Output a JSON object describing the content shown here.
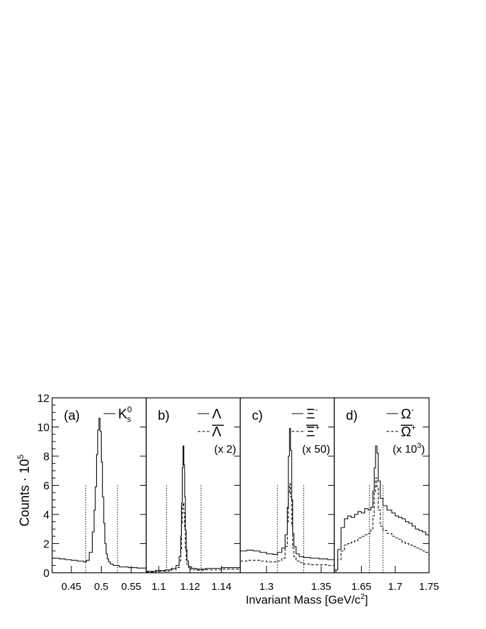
{
  "figure": {
    "ylabel_main": "Counts · 10",
    "ylabel_exp": "5",
    "xlabel_main": "Invariant Mass [GeV/c",
    "xlabel_exp": "2",
    "xlabel_close": "]",
    "yticks": [
      "0",
      "2",
      "4",
      "6",
      "8",
      "10",
      "12"
    ]
  },
  "chart_data": [
    {
      "type": "line",
      "panel_label": "(a)",
      "scale_note": "",
      "xticks": [
        "0.45",
        "0.5",
        "0.55"
      ],
      "xlim": [
        0.418,
        0.575
      ],
      "ylim": [
        0,
        12
      ],
      "cut_lines": [
        0.474,
        0.527
      ],
      "legend": [
        {
          "style": "solid",
          "main": "K",
          "sup": "0",
          "sub": "s"
        }
      ],
      "series": [
        {
          "style": "solid",
          "x": [
            0.418,
            0.43,
            0.44,
            0.45,
            0.46,
            0.47,
            0.475,
            0.48,
            0.485,
            0.488,
            0.49,
            0.492,
            0.494,
            0.496,
            0.498,
            0.5,
            0.502,
            0.504,
            0.506,
            0.508,
            0.51,
            0.512,
            0.515,
            0.52,
            0.53,
            0.545,
            0.56,
            0.575
          ],
          "values": [
            1.0,
            0.95,
            0.9,
            0.85,
            0.8,
            0.75,
            0.85,
            1.4,
            2.8,
            4.3,
            5.9,
            8.1,
            9.8,
            10.6,
            9.7,
            7.6,
            5.2,
            3.4,
            2.0,
            1.3,
            0.95,
            0.75,
            0.6,
            0.5,
            0.4,
            0.35,
            0.32,
            0.3
          ]
        }
      ]
    },
    {
      "type": "line",
      "panel_label": "b)",
      "scale_note": "(x 2)",
      "xticks": [
        "1.1",
        "1.12",
        "1.14"
      ],
      "xlim": [
        1.092,
        1.152
      ],
      "ylim": [
        0,
        12
      ],
      "cut_lines": [
        1.105,
        1.127
      ],
      "legend": [
        {
          "style": "solid",
          "main": "Λ",
          "sup": "",
          "sub": "",
          "bar": false
        },
        {
          "style": "dashed",
          "main": "Λ",
          "sup": "",
          "sub": "",
          "bar": true
        }
      ],
      "series": [
        {
          "style": "solid",
          "x": [
            1.092,
            1.098,
            1.104,
            1.108,
            1.111,
            1.113,
            1.114,
            1.1145,
            1.115,
            1.1155,
            1.116,
            1.1165,
            1.117,
            1.1175,
            1.118,
            1.119,
            1.121,
            1.124,
            1.13,
            1.14,
            1.152
          ],
          "values": [
            0.1,
            0.15,
            0.2,
            0.3,
            0.5,
            1.1,
            2.5,
            4.8,
            7.2,
            8.7,
            7.4,
            5.2,
            2.9,
            1.6,
            0.8,
            0.4,
            0.3,
            0.25,
            0.3,
            0.35,
            0.45
          ]
        },
        {
          "style": "dashed",
          "x": [
            1.092,
            1.098,
            1.104,
            1.108,
            1.111,
            1.113,
            1.114,
            1.1145,
            1.115,
            1.1155,
            1.116,
            1.1165,
            1.117,
            1.1175,
            1.118,
            1.119,
            1.121,
            1.124,
            1.13,
            1.14,
            1.152
          ],
          "values": [
            0.05,
            0.1,
            0.12,
            0.2,
            0.35,
            0.8,
            1.6,
            3.3,
            4.6,
            4.8,
            4.1,
            3.0,
            1.7,
            0.9,
            0.5,
            0.25,
            0.2,
            0.18,
            0.2,
            0.25,
            0.3
          ]
        }
      ]
    },
    {
      "type": "line",
      "panel_label": "c)",
      "scale_note": "(x 50)",
      "xticks": [
        "1.3",
        "1.35"
      ],
      "xlim": [
        1.276,
        1.362
      ],
      "ylim": [
        0,
        12
      ],
      "cut_lines": [
        1.31,
        1.334
      ],
      "legend": [
        {
          "style": "solid",
          "main": "Ξ",
          "sup": "-",
          "sub": "",
          "bar": false
        },
        {
          "style": "dashed",
          "main": "Ξ",
          "sup": "+",
          "sub": "",
          "bar": true
        }
      ],
      "series": [
        {
          "style": "solid",
          "x": [
            1.276,
            1.282,
            1.288,
            1.294,
            1.3,
            1.306,
            1.31,
            1.314,
            1.317,
            1.319,
            1.32,
            1.321,
            1.322,
            1.323,
            1.324,
            1.325,
            1.327,
            1.33,
            1.334,
            1.34,
            1.348,
            1.356,
            1.362
          ],
          "values": [
            1.5,
            1.55,
            1.5,
            1.4,
            1.3,
            1.25,
            1.4,
            1.7,
            2.6,
            4.5,
            8.0,
            9.9,
            8.4,
            5.0,
            2.7,
            1.8,
            1.3,
            1.1,
            1.05,
            1.0,
            0.95,
            0.9,
            0.85
          ]
        },
        {
          "style": "dashed",
          "x": [
            1.276,
            1.282,
            1.288,
            1.294,
            1.3,
            1.306,
            1.31,
            1.314,
            1.317,
            1.319,
            1.32,
            1.321,
            1.322,
            1.323,
            1.324,
            1.325,
            1.327,
            1.33,
            1.334,
            1.34,
            1.348,
            1.356,
            1.362
          ],
          "values": [
            0.8,
            0.85,
            0.85,
            0.8,
            0.75,
            0.75,
            0.8,
            1.0,
            1.8,
            3.5,
            5.5,
            6.1,
            5.2,
            3.2,
            1.7,
            1.1,
            0.8,
            0.7,
            0.6,
            0.55,
            0.55,
            0.5,
            0.5
          ]
        }
      ]
    },
    {
      "type": "line",
      "panel_label": "d)",
      "scale_note": "(x 10",
      "scale_note_exp": "3",
      "scale_note_close": ")",
      "xticks": [
        "1.65",
        "1.7",
        "1.75"
      ],
      "xlim": [
        1.61,
        1.75
      ],
      "ylim": [
        0,
        12
      ],
      "cut_lines": [
        1.662,
        1.682
      ],
      "legend": [
        {
          "style": "solid",
          "main": "Ω",
          "sup": "-",
          "sub": "",
          "bar": false
        },
        {
          "style": "dashed",
          "main": "Ω",
          "sup": "+",
          "sub": "",
          "bar": true
        }
      ],
      "series": [
        {
          "style": "solid",
          "x": [
            1.61,
            1.615,
            1.62,
            1.625,
            1.63,
            1.635,
            1.64,
            1.645,
            1.65,
            1.655,
            1.66,
            1.664,
            1.667,
            1.669,
            1.671,
            1.673,
            1.675,
            1.678,
            1.682,
            1.688,
            1.695,
            1.7,
            1.705,
            1.71,
            1.715,
            1.72,
            1.725,
            1.73,
            1.735,
            1.74,
            1.745,
            1.75
          ],
          "values": [
            0.2,
            1.6,
            3.1,
            3.7,
            3.9,
            3.8,
            4.0,
            4.2,
            4.1,
            4.4,
            4.3,
            4.5,
            5.6,
            7.2,
            8.7,
            8.2,
            6.3,
            5.1,
            4.6,
            4.3,
            4.1,
            3.9,
            3.8,
            3.7,
            3.5,
            3.4,
            3.2,
            3.0,
            2.9,
            2.8,
            2.6,
            2.6
          ]
        },
        {
          "style": "dashed",
          "x": [
            1.61,
            1.615,
            1.62,
            1.625,
            1.63,
            1.635,
            1.64,
            1.645,
            1.65,
            1.655,
            1.66,
            1.664,
            1.667,
            1.669,
            1.671,
            1.673,
            1.675,
            1.678,
            1.682,
            1.688,
            1.695,
            1.7,
            1.705,
            1.71,
            1.715,
            1.72,
            1.725,
            1.73,
            1.735,
            1.74,
            1.745,
            1.75
          ],
          "values": [
            0.1,
            0.9,
            1.5,
            1.9,
            2.0,
            2.1,
            2.2,
            2.4,
            2.5,
            2.6,
            2.7,
            3.0,
            3.9,
            5.5,
            6.5,
            5.9,
            4.3,
            3.2,
            2.9,
            2.7,
            2.5,
            2.4,
            2.3,
            2.1,
            2.0,
            1.9,
            1.8,
            1.7,
            1.6,
            1.5,
            1.4,
            1.4
          ]
        }
      ]
    }
  ]
}
